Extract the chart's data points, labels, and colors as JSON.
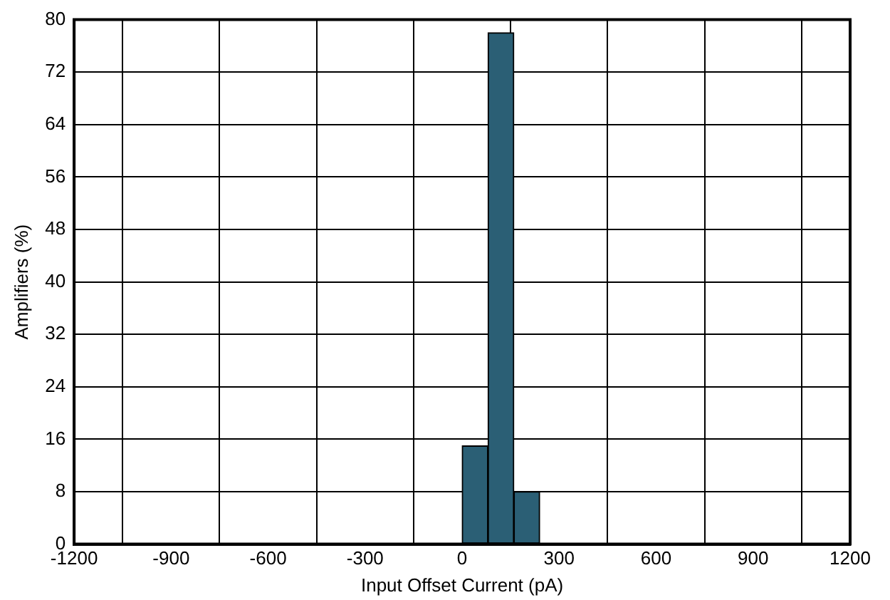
{
  "chart_data": {
    "type": "histogram",
    "xlabel": "Input Offset Current (pA)",
    "ylabel": "Amplifiers (%)",
    "bins": [
      0,
      80,
      160,
      240
    ],
    "values": [
      15,
      78,
      8
    ],
    "color": "#2b5f75",
    "xlim": [
      -1200,
      1200
    ],
    "xticks": [
      -1200,
      -900,
      -600,
      -300,
      0,
      300,
      600,
      900,
      1200
    ],
    "ylim": [
      0,
      80
    ],
    "yticks": [
      0,
      8,
      16,
      24,
      32,
      40,
      48,
      56,
      64,
      72,
      80
    ],
    "grid": true
  }
}
